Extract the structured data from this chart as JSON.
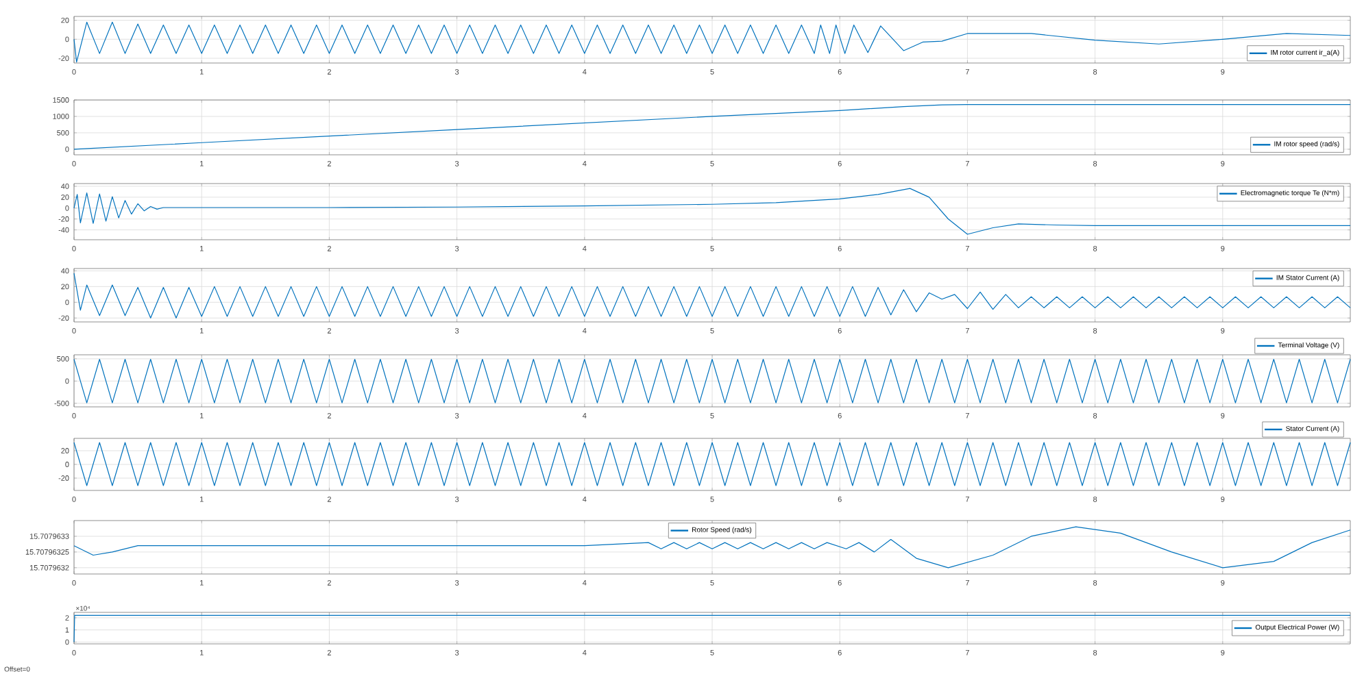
{
  "chart_data": [
    {
      "type": "line",
      "xlim": [
        0,
        10
      ],
      "ylim": [
        -25,
        24
      ],
      "xticks": [
        0,
        1,
        2,
        3,
        4,
        5,
        6,
        7,
        8,
        9
      ],
      "yticks": [
        -20,
        0,
        20
      ],
      "grid": true,
      "legend": "bottom right",
      "x": [
        0,
        0.02,
        0.1,
        0.2,
        0.3,
        0.4,
        0.5,
        0.6,
        0.7,
        0.8,
        0.9,
        1,
        1.1,
        1.2,
        1.3,
        1.4,
        1.5,
        1.6,
        1.7,
        1.8,
        1.9,
        2,
        2.1,
        2.2,
        2.3,
        2.4,
        2.5,
        2.6,
        2.7,
        2.8,
        2.9,
        3,
        3.1,
        3.2,
        3.3,
        3.4,
        3.5,
        3.6,
        3.7,
        3.8,
        3.9,
        4,
        4.1,
        4.2,
        4.3,
        4.4,
        4.5,
        4.6,
        4.7,
        4.8,
        4.9,
        5,
        5.1,
        5.2,
        5.3,
        5.4,
        5.5,
        5.6,
        5.7,
        5.8,
        5.85,
        5.92,
        5.97,
        6.04,
        6.11,
        6.22,
        6.32,
        6.5,
        6.65,
        6.8,
        7,
        7.5,
        8,
        8.5,
        9,
        9.5,
        10
      ],
      "series": [
        {
          "name": "IM rotor current ir_a(A)",
          "color": "#0072bd",
          "values": [
            0,
            -24,
            18,
            -15,
            18,
            -15,
            16,
            -15,
            15,
            -15,
            15,
            -15,
            15,
            -15,
            15,
            -15,
            15,
            -15,
            15,
            -15,
            15,
            -15,
            15,
            -15,
            15,
            -15,
            15,
            -15,
            15,
            -15,
            15,
            -15,
            15,
            -15,
            15,
            -15,
            15,
            -15,
            15,
            -15,
            15,
            -15,
            15,
            -15,
            15,
            -15,
            15,
            -15,
            15,
            -15,
            15,
            -15,
            15,
            -15,
            15,
            -15,
            15,
            -15,
            15,
            -15,
            15,
            -15,
            15,
            -15,
            15,
            -14,
            14,
            -12,
            -3,
            -2,
            6,
            6,
            -1,
            -5,
            0,
            6,
            4
          ]
        }
      ]
    },
    {
      "type": "line",
      "xlim": [
        0,
        10
      ],
      "ylim": [
        -170,
        1500
      ],
      "xticks": [
        0,
        1,
        2,
        3,
        4,
        5,
        6,
        7,
        8,
        9
      ],
      "yticks": [
        0,
        500,
        1000,
        1500
      ],
      "grid": true,
      "legend": "bottom right",
      "x": [
        0,
        1,
        2,
        3,
        4,
        5,
        6,
        6.5,
        6.8,
        7,
        8,
        9,
        10
      ],
      "series": [
        {
          "name": "IM rotor speed (rad/s)",
          "color": "#0072bd",
          "values": [
            0,
            200,
            400,
            600,
            800,
            1000,
            1180,
            1300,
            1350,
            1360,
            1360,
            1360,
            1360
          ]
        }
      ]
    },
    {
      "type": "line",
      "xlim": [
        0,
        10
      ],
      "ylim": [
        -58,
        45
      ],
      "xticks": [
        0,
        1,
        2,
        3,
        4,
        5,
        6,
        7,
        8,
        9
      ],
      "yticks": [
        -40,
        -20,
        0,
        20,
        40
      ],
      "grid": true,
      "legend": "top right",
      "x": [
        0,
        0.025,
        0.05,
        0.1,
        0.15,
        0.2,
        0.25,
        0.3,
        0.35,
        0.4,
        0.45,
        0.5,
        0.55,
        0.6,
        0.65,
        0.7,
        1,
        2,
        3,
        4,
        5,
        5.5,
        6,
        6.3,
        6.55,
        6.7,
        6.85,
        7,
        7.2,
        7.4,
        7.7,
        8,
        9,
        10
      ],
      "series": [
        {
          "name": "Electromagnetic torque Te (N*m)",
          "color": "#0072bd",
          "values": [
            0,
            25,
            -27,
            28,
            -28,
            26,
            -24,
            21,
            -18,
            14,
            -11,
            8,
            -5,
            3,
            -2,
            1,
            1,
            1,
            2,
            4,
            7,
            10,
            17,
            25,
            36,
            20,
            -20,
            -48,
            -36,
            -29,
            -31,
            -32,
            -32,
            -32
          ]
        }
      ]
    },
    {
      "type": "line",
      "xlim": [
        0,
        10
      ],
      "ylim": [
        -25,
        43
      ],
      "xticks": [
        0,
        1,
        2,
        3,
        4,
        5,
        6,
        7,
        8,
        9
      ],
      "yticks": [
        -20,
        0,
        20,
        40
      ],
      "grid": true,
      "legend": "top right",
      "x": [
        0,
        0.05,
        0.1,
        0.2,
        0.3,
        0.4,
        0.5,
        0.6,
        0.7,
        0.8,
        0.9,
        1,
        1.1,
        1.2,
        1.3,
        1.4,
        1.5,
        1.6,
        1.7,
        1.8,
        1.9,
        2,
        2.1,
        2.2,
        2.3,
        2.4,
        2.5,
        2.6,
        2.7,
        2.8,
        2.9,
        3,
        3.1,
        3.2,
        3.3,
        3.4,
        3.5,
        3.6,
        3.7,
        3.8,
        3.9,
        4,
        4.1,
        4.2,
        4.3,
        4.4,
        4.5,
        4.6,
        4.7,
        4.8,
        4.9,
        5,
        5.1,
        5.2,
        5.3,
        5.4,
        5.5,
        5.6,
        5.7,
        5.8,
        5.9,
        6,
        6.1,
        6.2,
        6.3,
        6.4,
        6.5,
        6.6,
        6.7,
        6.8,
        6.9,
        7,
        7.1,
        7.2,
        7.3,
        7.4,
        7.5,
        7.6,
        7.7,
        7.8,
        7.9,
        8,
        8.1,
        8.2,
        8.3,
        8.4,
        8.5,
        8.6,
        8.7,
        8.8,
        8.9,
        9,
        9.1,
        9.2,
        9.3,
        9.4,
        9.5,
        9.6,
        9.7,
        9.8,
        9.9,
        10
      ],
      "series": [
        {
          "name": "IM Stator Current (A)",
          "color": "#0072bd",
          "values": [
            37,
            -10,
            22,
            -17,
            22,
            -17,
            19,
            -20,
            19,
            -20,
            19,
            -18,
            20,
            -18,
            20,
            -18,
            20,
            -18,
            20,
            -18,
            20,
            -18,
            20,
            -18,
            20,
            -18,
            20,
            -18,
            20,
            -18,
            20,
            -18,
            20,
            -18,
            20,
            -18,
            20,
            -18,
            20,
            -18,
            20,
            -18,
            20,
            -18,
            20,
            -18,
            20,
            -18,
            20,
            -18,
            20,
            -18,
            20,
            -18,
            20,
            -18,
            20,
            -18,
            20,
            -18,
            20,
            -18,
            20,
            -18,
            19,
            -16,
            16,
            -12,
            12,
            4,
            10,
            -8,
            13,
            -9,
            10,
            -7,
            7,
            -7,
            7,
            -7,
            7,
            -7,
            7,
            -7,
            7,
            -7,
            7,
            -7,
            7,
            -7,
            7,
            -7,
            7,
            -7,
            7,
            -7,
            7,
            -7,
            7,
            -7,
            7,
            -7
          ]
        }
      ]
    },
    {
      "type": "line",
      "xlim": [
        0,
        10
      ],
      "ylim": [
        -580,
        590
      ],
      "xticks": [
        0,
        1,
        2,
        3,
        4,
        5,
        6,
        7,
        8,
        9
      ],
      "yticks": [
        -500,
        0,
        500
      ],
      "grid": true,
      "legend": "top right",
      "x": [
        0,
        0.1,
        0.2,
        0.3,
        0.4,
        0.5,
        0.6,
        0.7,
        0.8,
        0.9,
        1,
        1.1,
        1.2,
        1.3,
        1.4,
        1.5,
        1.6,
        1.7,
        1.8,
        1.9,
        2,
        2.1,
        2.2,
        2.3,
        2.4,
        2.5,
        2.6,
        2.7,
        2.8,
        2.9,
        3,
        3.1,
        3.2,
        3.3,
        3.4,
        3.5,
        3.6,
        3.7,
        3.8,
        3.9,
        4,
        4.1,
        4.2,
        4.3,
        4.4,
        4.5,
        4.6,
        4.7,
        4.8,
        4.9,
        5,
        5.1,
        5.2,
        5.3,
        5.4,
        5.5,
        5.6,
        5.7,
        5.8,
        5.9,
        6,
        6.1,
        6.2,
        6.3,
        6.4,
        6.5,
        6.6,
        6.7,
        6.8,
        6.9,
        7,
        7.1,
        7.2,
        7.3,
        7.4,
        7.5,
        7.6,
        7.7,
        7.8,
        7.9,
        8,
        8.1,
        8.2,
        8.3,
        8.4,
        8.5,
        8.6,
        8.7,
        8.8,
        8.9,
        9,
        9.1,
        9.2,
        9.3,
        9.4,
        9.5,
        9.6,
        9.7,
        9.8,
        9.9,
        10
      ],
      "series": [
        {
          "name": "Terminal Voltage (V)",
          "color": "#0072bd",
          "values": [
            490,
            -490,
            490,
            -490,
            490,
            -490,
            490,
            -490,
            490,
            -490,
            490,
            -490,
            490,
            -490,
            490,
            -490,
            490,
            -490,
            490,
            -490,
            490,
            -490,
            490,
            -490,
            490,
            -490,
            490,
            -490,
            490,
            -490,
            490,
            -490,
            490,
            -490,
            490,
            -490,
            490,
            -490,
            490,
            -490,
            490,
            -490,
            490,
            -490,
            490,
            -490,
            490,
            -490,
            490,
            -490,
            490,
            -490,
            490,
            -490,
            490,
            -490,
            490,
            -490,
            490,
            -490,
            490,
            -490,
            490,
            -490,
            490,
            -490,
            490,
            -490,
            490,
            -490,
            490,
            -490,
            490,
            -490,
            490,
            -490,
            490,
            -490,
            490,
            -490,
            490,
            -490,
            490,
            -490,
            490,
            -490,
            490,
            -490,
            490,
            -490,
            490,
            -490,
            490,
            -490,
            490,
            -490,
            490,
            -490,
            490,
            -490,
            490
          ]
        }
      ]
    },
    {
      "type": "line",
      "xlim": [
        0,
        10
      ],
      "ylim": [
        -38,
        38
      ],
      "xticks": [
        0,
        1,
        2,
        3,
        4,
        5,
        6,
        7,
        8,
        9
      ],
      "yticks": [
        -20,
        0,
        20
      ],
      "grid": true,
      "legend": "top right",
      "x": [
        0,
        0.1,
        0.2,
        0.3,
        0.4,
        0.5,
        0.6,
        0.7,
        0.8,
        0.9,
        1,
        1.1,
        1.2,
        1.3,
        1.4,
        1.5,
        1.6,
        1.7,
        1.8,
        1.9,
        2,
        2.1,
        2.2,
        2.3,
        2.4,
        2.5,
        2.6,
        2.7,
        2.8,
        2.9,
        3,
        3.1,
        3.2,
        3.3,
        3.4,
        3.5,
        3.6,
        3.7,
        3.8,
        3.9,
        4,
        4.1,
        4.2,
        4.3,
        4.4,
        4.5,
        4.6,
        4.7,
        4.8,
        4.9,
        5,
        5.1,
        5.2,
        5.3,
        5.4,
        5.5,
        5.6,
        5.7,
        5.8,
        5.9,
        6,
        6.1,
        6.2,
        6.3,
        6.4,
        6.5,
        6.6,
        6.7,
        6.8,
        6.9,
        7,
        7.1,
        7.2,
        7.3,
        7.4,
        7.5,
        7.6,
        7.7,
        7.8,
        7.9,
        8,
        8.1,
        8.2,
        8.3,
        8.4,
        8.5,
        8.6,
        8.7,
        8.8,
        8.9,
        9,
        9.1,
        9.2,
        9.3,
        9.4,
        9.5,
        9.6,
        9.7,
        9.8,
        9.9,
        10
      ],
      "series": [
        {
          "name": "Stator Current (A)",
          "color": "#0072bd",
          "values": [
            32,
            -31,
            32,
            -31,
            32,
            -31,
            32,
            -31,
            32,
            -31,
            32,
            -31,
            32,
            -31,
            32,
            -31,
            32,
            -31,
            32,
            -31,
            32,
            -31,
            32,
            -31,
            32,
            -31,
            32,
            -31,
            32,
            -31,
            32,
            -31,
            32,
            -31,
            32,
            -31,
            32,
            -31,
            32,
            -31,
            32,
            -31,
            32,
            -31,
            32,
            -31,
            32,
            -31,
            32,
            -31,
            32,
            -31,
            32,
            -31,
            32,
            -31,
            32,
            -31,
            32,
            -31,
            32,
            -31,
            32,
            -31,
            32,
            -31,
            32,
            -31,
            32,
            -31,
            32,
            -31,
            32,
            -31,
            32,
            -31,
            32,
            -31,
            32,
            -31,
            32,
            -31,
            32,
            -31,
            32,
            -31,
            32,
            -31,
            32,
            -31,
            32,
            -31,
            32,
            -31,
            32,
            -31,
            32,
            -31,
            32,
            -31,
            32
          ]
        }
      ]
    },
    {
      "type": "line",
      "xlim": [
        0,
        10
      ],
      "ylim": [
        15.70796318,
        15.70796335
      ],
      "xticks": [
        0,
        1,
        2,
        3,
        4,
        5,
        6,
        7,
        8,
        9
      ],
      "yticks": [
        15.7079632,
        15.70796325,
        15.7079633
      ],
      "grid": true,
      "legend": "top",
      "x": [
        0,
        0.15,
        0.3,
        0.5,
        1,
        2,
        3,
        4,
        4.5,
        4.6,
        4.7,
        4.8,
        4.9,
        5,
        5.1,
        5.2,
        5.3,
        5.4,
        5.5,
        5.6,
        5.7,
        5.8,
        5.9,
        6.05,
        6.15,
        6.27,
        6.4,
        6.6,
        6.85,
        7.2,
        7.5,
        7.85,
        8.2,
        8.6,
        9,
        9.4,
        9.7,
        10
      ],
      "series": [
        {
          "name": "Rotor Speed (rad/s)",
          "color": "#0072bd",
          "values": [
            15.70796327,
            15.70796324,
            15.70796325,
            15.70796327,
            15.70796327,
            15.70796327,
            15.70796327,
            15.70796327,
            15.70796328,
            15.70796326,
            15.70796328,
            15.70796326,
            15.70796328,
            15.70796326,
            15.70796328,
            15.70796326,
            15.70796328,
            15.70796326,
            15.70796328,
            15.70796326,
            15.70796328,
            15.70796326,
            15.70796328,
            15.70796326,
            15.70796328,
            15.70796325,
            15.70796329,
            15.70796323,
            15.7079632,
            15.70796324,
            15.7079633,
            15.70796333,
            15.70796331,
            15.70796325,
            15.7079632,
            15.70796322,
            15.70796328,
            15.70796332
          ]
        }
      ]
    },
    {
      "type": "line",
      "xlim": [
        0,
        10
      ],
      "ylim": [
        -0.15,
        2.45
      ],
      "xticks": [
        0,
        1,
        2,
        3,
        4,
        5,
        6,
        7,
        8,
        9
      ],
      "yticks": [
        0,
        1,
        2
      ],
      "grid": true,
      "legend": "right",
      "annotations": [
        "×10⁴",
        "Offset=0"
      ],
      "x": [
        0,
        0.005,
        10
      ],
      "series": [
        {
          "name": "Output Electrical Power (W)",
          "color": "#0072bd",
          "values": [
            0,
            2.2,
            2.2
          ]
        }
      ]
    }
  ]
}
